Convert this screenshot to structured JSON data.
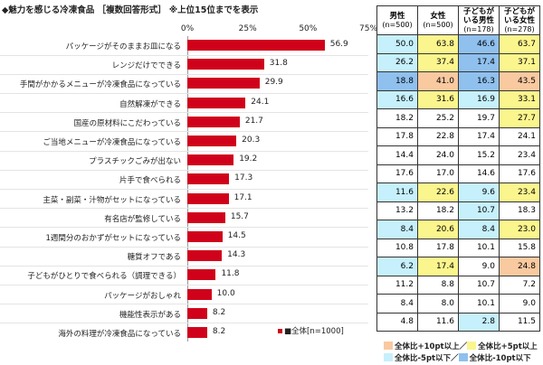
{
  "chart_data": {
    "type": "bar",
    "orientation": "horizontal",
    "title": "◆魅力を感じる冷凍食品 ［複数回答形式］ ※上位15位までを表示",
    "xlim": [
      0,
      75
    ],
    "ticks": [
      "0%",
      "25%",
      "50%",
      "75%"
    ],
    "tick_values": [
      0,
      25,
      50,
      75
    ],
    "legend": "■全体[n=1000]",
    "categories": [
      "パッケージがそのままお皿になる",
      "レンジだけでできる",
      "手間がかかるメニューが冷凍食品になっている",
      "自然解凍ができる",
      "国産の原材料にこだわっている",
      "ご当地メニューが冷凍食品になっている",
      "プラスチックごみが出ない",
      "片手で食べられる",
      "主菜・副菜・汁物がセットになっている",
      "有名店が監修している",
      "1週間分のおかずがセットになっている",
      "糖質オフである",
      "子どもがひとりで食べられる（調理できる）",
      "パッケージがおしゃれ",
      "機能性表示がある",
      "海外の料理が冷凍食品になっている"
    ],
    "values": [
      56.9,
      31.8,
      29.9,
      24.1,
      21.7,
      20.3,
      19.2,
      17.3,
      17.1,
      15.7,
      14.5,
      14.3,
      11.8,
      10.0,
      8.2,
      8.2
    ],
    "bar_color": "#d0021b",
    "table": {
      "columns": [
        {
          "name": "男性",
          "n": "(n=500)"
        },
        {
          "name": "女性",
          "n": "(n=500)"
        },
        {
          "name": "子どもがいる男性",
          "l1": "子どもが",
          "l2": "いる男性",
          "n": "(n=178)"
        },
        {
          "name": "子どもがいる女性",
          "l1": "子どもが",
          "l2": "いる女性",
          "n": "(n=278)"
        }
      ],
      "rows": [
        [
          50.0,
          63.8,
          46.6,
          63.7
        ],
        [
          26.2,
          37.4,
          17.4,
          37.1
        ],
        [
          18.8,
          41.0,
          16.3,
          43.5
        ],
        [
          16.6,
          31.6,
          16.9,
          33.1
        ],
        [
          18.2,
          25.2,
          19.7,
          27.7
        ],
        [
          17.8,
          22.8,
          17.4,
          24.1
        ],
        [
          14.4,
          24.0,
          15.2,
          23.4
        ],
        [
          17.6,
          17.0,
          14.6,
          17.6
        ],
        [
          11.6,
          22.6,
          9.6,
          23.4
        ],
        [
          13.2,
          18.2,
          10.7,
          18.3
        ],
        [
          8.4,
          20.6,
          8.4,
          23.0
        ],
        [
          10.8,
          17.8,
          10.1,
          15.8
        ],
        [
          6.2,
          17.4,
          9.0,
          24.8
        ],
        [
          11.2,
          8.8,
          10.7,
          7.2
        ],
        [
          8.4,
          8.0,
          10.1,
          9.0
        ],
        [
          4.8,
          11.6,
          2.8,
          11.5
        ]
      ]
    },
    "highlight_key": [
      {
        "label": "全体比+10pt以上／",
        "color": "#f9c9a0"
      },
      {
        "label": "全体比+5pt以上",
        "color": "#fbf58e"
      },
      {
        "label": "全体比-5pt以下／",
        "color": "#c6f0fb"
      },
      {
        "label": "全体比-10pt以下",
        "color": "#8fc0ee"
      }
    ]
  }
}
